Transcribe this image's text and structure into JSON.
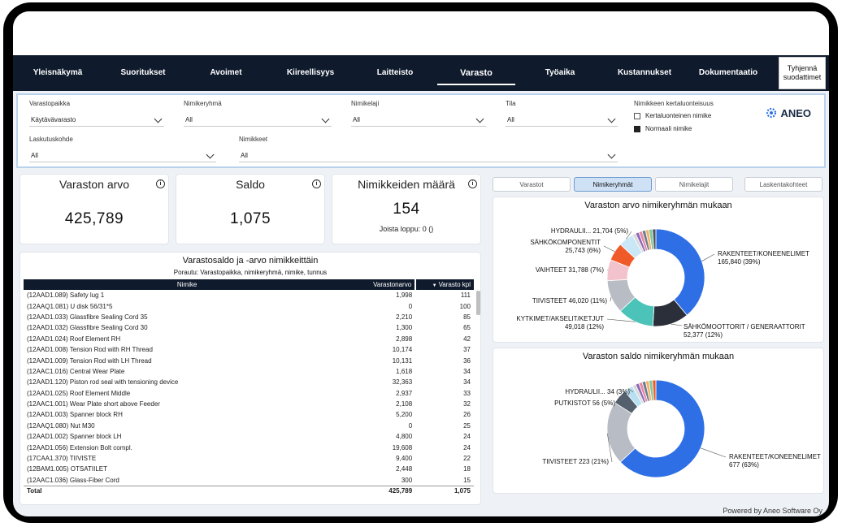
{
  "nav": {
    "tabs": [
      "Yleisnäkymä",
      "Suoritukset",
      "Avoimet",
      "Kiireellisyys",
      "Laitteisto",
      "Varasto",
      "Työaika",
      "Kustannukset",
      "Dokumentaatio"
    ],
    "active": "Varasto",
    "clear_filters": "Tyhjennä suodattimet"
  },
  "filters": {
    "varastopaikka": {
      "label": "Varastopaikka",
      "value": "Käytävävarasto"
    },
    "nimikeryhma": {
      "label": "Nimikeryhmä",
      "value": "All"
    },
    "nimikelaji": {
      "label": "Nimikelaji",
      "value": "All"
    },
    "tila": {
      "label": "Tila",
      "value": "All"
    },
    "laskutuskohde": {
      "label": "Laskutuskohde",
      "value": "All"
    },
    "nimikkeet": {
      "label": "Nimikkeet",
      "value": "All"
    },
    "kertaluonteisuus": {
      "label": "Nimikkeen kertaluonteisuus",
      "options": [
        "Kertaluonteinen nimike",
        "Normaali nimike"
      ]
    }
  },
  "logo": {
    "text": "ANEO",
    "icon": "gear-icon"
  },
  "kpis": {
    "varaston_arvo": {
      "title": "Varaston arvo",
      "value": "425,789"
    },
    "saldo": {
      "title": "Saldo",
      "value": "1,075"
    },
    "nimikkeiden_maara": {
      "title": "Nimikkeiden määrä",
      "value": "154",
      "sub": "Joista loppu: 0 ()"
    }
  },
  "table": {
    "title": "Varastosaldo ja -arvo nimikkeittäin",
    "subtitle": "Porautu: Varastopaikka, nimikeryhmä, nimike, tunnus",
    "columns": [
      "Nimike",
      "Varastonarvo",
      "Varasto kpl"
    ],
    "rows": [
      [
        "(12AAD1.089) Safety lug 1",
        "1,998",
        "111"
      ],
      [
        "(12AAQ1.081) U disk 56/31*5",
        "0",
        "100"
      ],
      [
        "(12AAD1.033) Glassfibre Sealing Cord 35",
        "2,210",
        "85"
      ],
      [
        "(12AAD1.032) Glassfibre Sealing Cord 30",
        "1,300",
        "65"
      ],
      [
        "(12AAD1.024) Roof Element RH",
        "2,898",
        "42"
      ],
      [
        "(12AAD1.008) Tension Rod with RH Thread",
        "10,174",
        "37"
      ],
      [
        "(12AAD1.009) Tension Rod with LH Thread",
        "10,131",
        "36"
      ],
      [
        "(12AAC1.016) Central Wear Plate",
        "1,618",
        "34"
      ],
      [
        "(12AAD1.120) Piston rod seal with tensioning device",
        "32,363",
        "34"
      ],
      [
        "(12AAD1.025) Roof Element Middle",
        "2,937",
        "33"
      ],
      [
        "(12AAC1.001) Wear Plate short above Feeder",
        "2,108",
        "32"
      ],
      [
        "(12AAD1.003) Spanner block RH",
        "5,200",
        "26"
      ],
      [
        "(12AAQ1.080) Nut M30",
        "0",
        "25"
      ],
      [
        "(12AAD1.002) Spanner block LH",
        "4,800",
        "24"
      ],
      [
        "(12AAD1.056) Extension Bolt compl.",
        "19,608",
        "24"
      ],
      [
        "(17CAA1.370) TIIVISTE",
        "9,400",
        "22"
      ],
      [
        "(12BAM1.005) OTSATIILET",
        "2,448",
        "18"
      ],
      [
        "(12AAC1.036) Glass-Fiber Cord",
        "300",
        "15"
      ]
    ],
    "total": [
      "Total",
      "425,789",
      "1,075"
    ]
  },
  "right_tabs": [
    "Varastot",
    "Nimikeryhmät",
    "Nimikelajit",
    "Laskentakohteet"
  ],
  "right_tab_active": "Nimikeryhmät",
  "chart_data": [
    {
      "type": "pie",
      "title": "Varaston arvo nimikeryhmän mukaan",
      "categories": [
        "RAKENTEET/KONEENELIMET",
        "SÄHKÖMOOTTORIT / GENERAATTORIT",
        "KYTKIMET/AKSELIT/KETJUT",
        "TIIVISTEET",
        "VAIHTEET",
        "SÄHKÖKOMPONENTIT",
        "HYDRAULII..."
      ],
      "values": [
        165840,
        52377,
        49018,
        46020,
        31788,
        25743,
        21704
      ],
      "labels": [
        "165,840 (39%)",
        "52,377 (12%)",
        "49,018 (12%)",
        "46,020 (11%)",
        "31,788 (7%)",
        "25,743 (6%)",
        "21,704 (5%)"
      ],
      "colors": [
        "#2f6fe6",
        "#2b2f3a",
        "#4cc3b8",
        "#b8bcc4",
        "#f2c3cc",
        "#f05a28",
        "#c9e7f7"
      ],
      "remainder_colors": [
        "#d9d9d9",
        "#8e6ab8",
        "#e88aa3",
        "#6a7d8f",
        "#f6b26b",
        "#7ec9a0",
        "#4b5563"
      ]
    },
    {
      "type": "pie",
      "title": "Varaston saldo nimikeryhmän mukaan",
      "categories": [
        "RAKENTEET/KONEENELIMET",
        "TIIVISTEET",
        "PUTKISTOT",
        "HYDRAULII..."
      ],
      "values": [
        677,
        223,
        56,
        34
      ],
      "labels": [
        "677 (63%)",
        "223 (21%)",
        "56 (5%)",
        "34 (3%)"
      ],
      "colors": [
        "#2f6fe6",
        "#b8bcc4",
        "#55606e",
        "#b8e0f2"
      ],
      "remainder_colors": [
        "#d9d9d9",
        "#8e6ab8",
        "#e88aa3",
        "#6a7d8f",
        "#f6b26b",
        "#7ec9a0",
        "#f05a28"
      ]
    }
  ],
  "footer": {
    "powered_by": "Powered by Aneo Software Oy"
  }
}
